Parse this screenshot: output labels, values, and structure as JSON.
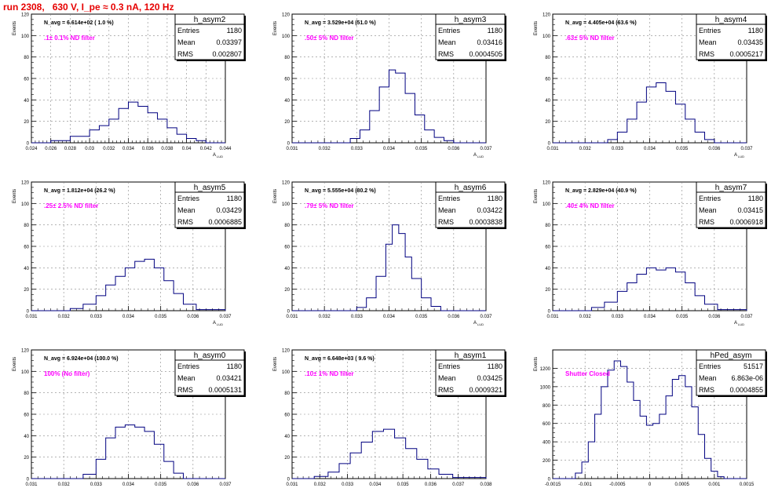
{
  "page": {
    "run_title": "run 2308,   630 V, I_pe ≈ 0.3 nA, 120 Hz"
  },
  "stats_labels": {
    "entries": "Entries",
    "mean": "Mean",
    "rms": "RMS"
  },
  "chart_data": [
    {
      "type": "histogram",
      "title": "h_asym2",
      "navg": "N_avg = 6.614e+02 ( 1.0 %)",
      "filter_label": ".1± 0.1% ND filter",
      "entries": "1180",
      "mean": "0.03397",
      "rms": "0.002807",
      "ylabel": "Events",
      "xlabel": "A",
      "xlim": [
        0.024,
        0.044
      ],
      "ylim": [
        0,
        120
      ],
      "x_ticks": [
        "0.024",
        "0.026",
        "0.028",
        "0.03",
        "0.032",
        "0.034",
        "0.036",
        "0.038",
        "0.04",
        "0.042",
        "0.044"
      ],
      "y_ticks": [
        "0",
        "20",
        "40",
        "60",
        "80",
        "100",
        "120"
      ],
      "step_x": [
        0.024,
        0.026,
        0.028,
        0.03,
        0.031,
        0.032,
        0.033,
        0.034,
        0.035,
        0.036,
        0.037,
        0.038,
        0.039,
        0.04,
        0.041,
        0.042,
        0.044
      ],
      "counts": [
        0,
        2,
        6,
        12,
        16,
        22,
        32,
        38,
        34,
        28,
        22,
        14,
        8,
        4,
        2,
        0
      ]
    },
    {
      "type": "histogram",
      "title": "h_asym3",
      "navg": "N_avg = 3.529e+04 (51.0 %)",
      "filter_label": ".50± 5% ND filter",
      "entries": "1180",
      "mean": "0.03416",
      "rms": "0.0004505",
      "ylabel": "Events",
      "xlabel": "A",
      "xlim": [
        0.031,
        0.037
      ],
      "ylim": [
        0,
        120
      ],
      "x_ticks": [
        "0.031",
        "0.032",
        "0.033",
        "0.034",
        "0.035",
        "0.036",
        "0.037"
      ],
      "y_ticks": [
        "0",
        "20",
        "40",
        "60",
        "80",
        "100",
        "120"
      ],
      "step_x": [
        0.031,
        0.0328,
        0.0331,
        0.0334,
        0.0337,
        0.034,
        0.0342,
        0.0345,
        0.0348,
        0.0351,
        0.0354,
        0.0357,
        0.036,
        0.037
      ],
      "counts": [
        0,
        4,
        12,
        30,
        52,
        68,
        65,
        46,
        26,
        12,
        5,
        2,
        0
      ]
    },
    {
      "type": "histogram",
      "title": "h_asym4",
      "navg": "N_avg = 4.405e+04 (63.6 %)",
      "filter_label": ".63± 5% ND filter",
      "entries": "1180",
      "mean": "0.03435",
      "rms": "0.0005217",
      "ylabel": "Events",
      "xlabel": "A",
      "xlim": [
        0.031,
        0.037
      ],
      "ylim": [
        0,
        120
      ],
      "x_ticks": [
        "0.031",
        "0.032",
        "0.033",
        "0.034",
        "0.035",
        "0.036",
        "0.037"
      ],
      "y_ticks": [
        "0",
        "20",
        "40",
        "60",
        "80",
        "100",
        "120"
      ],
      "step_x": [
        0.031,
        0.0327,
        0.033,
        0.0333,
        0.0336,
        0.0339,
        0.0342,
        0.0345,
        0.0348,
        0.0351,
        0.0354,
        0.0357,
        0.036,
        0.037
      ],
      "counts": [
        0,
        3,
        10,
        22,
        38,
        52,
        56,
        48,
        36,
        22,
        10,
        3,
        0
      ]
    },
    {
      "type": "histogram",
      "title": "h_asym5",
      "navg": "N_avg = 1.812e+04 (26.2 %)",
      "filter_label": ".25± 2.5% ND filter",
      "entries": "1180",
      "mean": "0.03429",
      "rms": "0.0006885",
      "ylabel": "Events",
      "xlabel": "A",
      "xlim": [
        0.031,
        0.037
      ],
      "ylim": [
        0,
        120
      ],
      "x_ticks": [
        "0.031",
        "0.032",
        "0.033",
        "0.034",
        "0.035",
        "0.036",
        "0.037"
      ],
      "y_ticks": [
        "0",
        "20",
        "40",
        "60",
        "80",
        "100",
        "120"
      ],
      "step_x": [
        0.031,
        0.0322,
        0.0326,
        0.033,
        0.0333,
        0.0336,
        0.0339,
        0.0342,
        0.0345,
        0.0348,
        0.0351,
        0.0354,
        0.0357,
        0.0361,
        0.037
      ],
      "counts": [
        0,
        2,
        6,
        14,
        24,
        32,
        40,
        46,
        48,
        40,
        28,
        16,
        6,
        1
      ]
    },
    {
      "type": "histogram",
      "title": "h_asym6",
      "navg": "N_avg = 5.555e+04 (80.2 %)",
      "filter_label": ".79± 5% ND filter",
      "entries": "1180",
      "mean": "0.03422",
      "rms": "0.0003838",
      "ylabel": "Events",
      "xlabel": "A",
      "xlim": [
        0.031,
        0.037
      ],
      "ylim": [
        0,
        120
      ],
      "x_ticks": [
        "0.031",
        "0.032",
        "0.033",
        "0.034",
        "0.035",
        "0.036",
        "0.037"
      ],
      "y_ticks": [
        "0",
        "20",
        "40",
        "60",
        "80",
        "100",
        "120"
      ],
      "step_x": [
        0.031,
        0.033,
        0.0333,
        0.0336,
        0.0339,
        0.0341,
        0.0343,
        0.0345,
        0.0347,
        0.035,
        0.0353,
        0.0356,
        0.037
      ],
      "counts": [
        0,
        3,
        12,
        32,
        62,
        80,
        72,
        50,
        30,
        12,
        4,
        0
      ]
    },
    {
      "type": "histogram",
      "title": "h_asym7",
      "navg": "N_avg = 2.829e+04 (40.9 %)",
      "filter_label": ".40± 4% ND filter",
      "entries": "1180",
      "mean": "0.03415",
      "rms": "0.0006918",
      "ylabel": "Events",
      "xlabel": "A",
      "xlim": [
        0.031,
        0.037
      ],
      "ylim": [
        0,
        120
      ],
      "x_ticks": [
        "0.031",
        "0.032",
        "0.033",
        "0.034",
        "0.035",
        "0.036",
        "0.037"
      ],
      "y_ticks": [
        "0",
        "20",
        "40",
        "60",
        "80",
        "100",
        "120"
      ],
      "step_x": [
        0.031,
        0.0322,
        0.0326,
        0.033,
        0.0333,
        0.0336,
        0.0339,
        0.0342,
        0.0345,
        0.0348,
        0.0351,
        0.0354,
        0.0357,
        0.0361,
        0.037
      ],
      "counts": [
        0,
        3,
        8,
        18,
        26,
        34,
        40,
        38,
        40,
        36,
        26,
        14,
        6,
        1
      ]
    },
    {
      "type": "histogram",
      "title": "h_asym0",
      "navg": "N_avg = 6.924e+04 (100.0 %)",
      "filter_label": "100% (No filter)",
      "entries": "1180",
      "mean": "0.03421",
      "rms": "0.0005131",
      "ylabel": "Events",
      "xlabel": "A",
      "xlim": [
        0.031,
        0.037
      ],
      "ylim": [
        0,
        120
      ],
      "x_ticks": [
        "0.031",
        "0.032",
        "0.033",
        "0.034",
        "0.035",
        "0.036",
        "0.037"
      ],
      "y_ticks": [
        "0",
        "20",
        "40",
        "60",
        "80",
        "100",
        "120"
      ],
      "step_x": [
        0.031,
        0.0326,
        0.033,
        0.0333,
        0.0336,
        0.0339,
        0.0342,
        0.0345,
        0.0348,
        0.0351,
        0.0354,
        0.0357,
        0.037
      ],
      "counts": [
        0,
        4,
        18,
        38,
        48,
        50,
        48,
        44,
        32,
        16,
        5,
        0
      ]
    },
    {
      "type": "histogram",
      "title": "h_asym1",
      "navg": "N_avg = 6.648e+03 ( 9.6 %)",
      "filter_label": ".10± 1% ND filter",
      "entries": "1180",
      "mean": "0.03425",
      "rms": "0.0009321",
      "ylabel": "Events",
      "xlabel": "A",
      "xlim": [
        0.031,
        0.038
      ],
      "ylim": [
        0,
        120
      ],
      "x_ticks": [
        "0.031",
        "0.032",
        "0.033",
        "0.034",
        "0.035",
        "0.036",
        "0.037",
        "0.038"
      ],
      "y_ticks": [
        "0",
        "20",
        "40",
        "60",
        "80",
        "100",
        "120"
      ],
      "step_x": [
        0.031,
        0.0318,
        0.0323,
        0.0327,
        0.0331,
        0.0335,
        0.0339,
        0.0343,
        0.0347,
        0.0351,
        0.0355,
        0.0359,
        0.0363,
        0.0368,
        0.038
      ],
      "counts": [
        0,
        2,
        6,
        14,
        24,
        34,
        44,
        46,
        38,
        28,
        18,
        9,
        4,
        1
      ]
    },
    {
      "type": "histogram",
      "title": "hPed_asym",
      "navg": "",
      "filter_label": "Shutter Closed",
      "entries": "51517",
      "mean": "6.863e-06",
      "rms": "0.0004855",
      "ylabel": "Events",
      "xlabel": "A",
      "xlim": [
        -0.0015,
        0.0015
      ],
      "ylim": [
        0,
        1400
      ],
      "x_ticks": [
        "-0.0015",
        "-0.001",
        "-0.0005",
        "0",
        "0.0005",
        "0.001",
        "0.0015"
      ],
      "y_ticks": [
        "0",
        "200",
        "400",
        "600",
        "800",
        "1000",
        "1200"
      ],
      "y_tick_values": [
        0,
        200,
        400,
        600,
        800,
        1000,
        1200
      ],
      "step_x": [
        -0.0015,
        -0.00115,
        -0.00105,
        -0.00095,
        -0.00085,
        -0.00075,
        -0.00065,
        -0.00055,
        -0.00045,
        -0.00035,
        -0.00025,
        -0.00015,
        -5e-05,
        5e-05,
        0.00015,
        0.00025,
        0.00035,
        0.00045,
        0.00055,
        0.00065,
        0.00075,
        0.00085,
        0.00095,
        0.00105,
        0.00115,
        0.0015
      ],
      "counts": [
        0,
        60,
        180,
        400,
        700,
        1000,
        1180,
        1280,
        1220,
        1050,
        850,
        680,
        580,
        600,
        700,
        900,
        1080,
        1120,
        1000,
        780,
        480,
        220,
        80,
        20,
        0
      ]
    }
  ]
}
